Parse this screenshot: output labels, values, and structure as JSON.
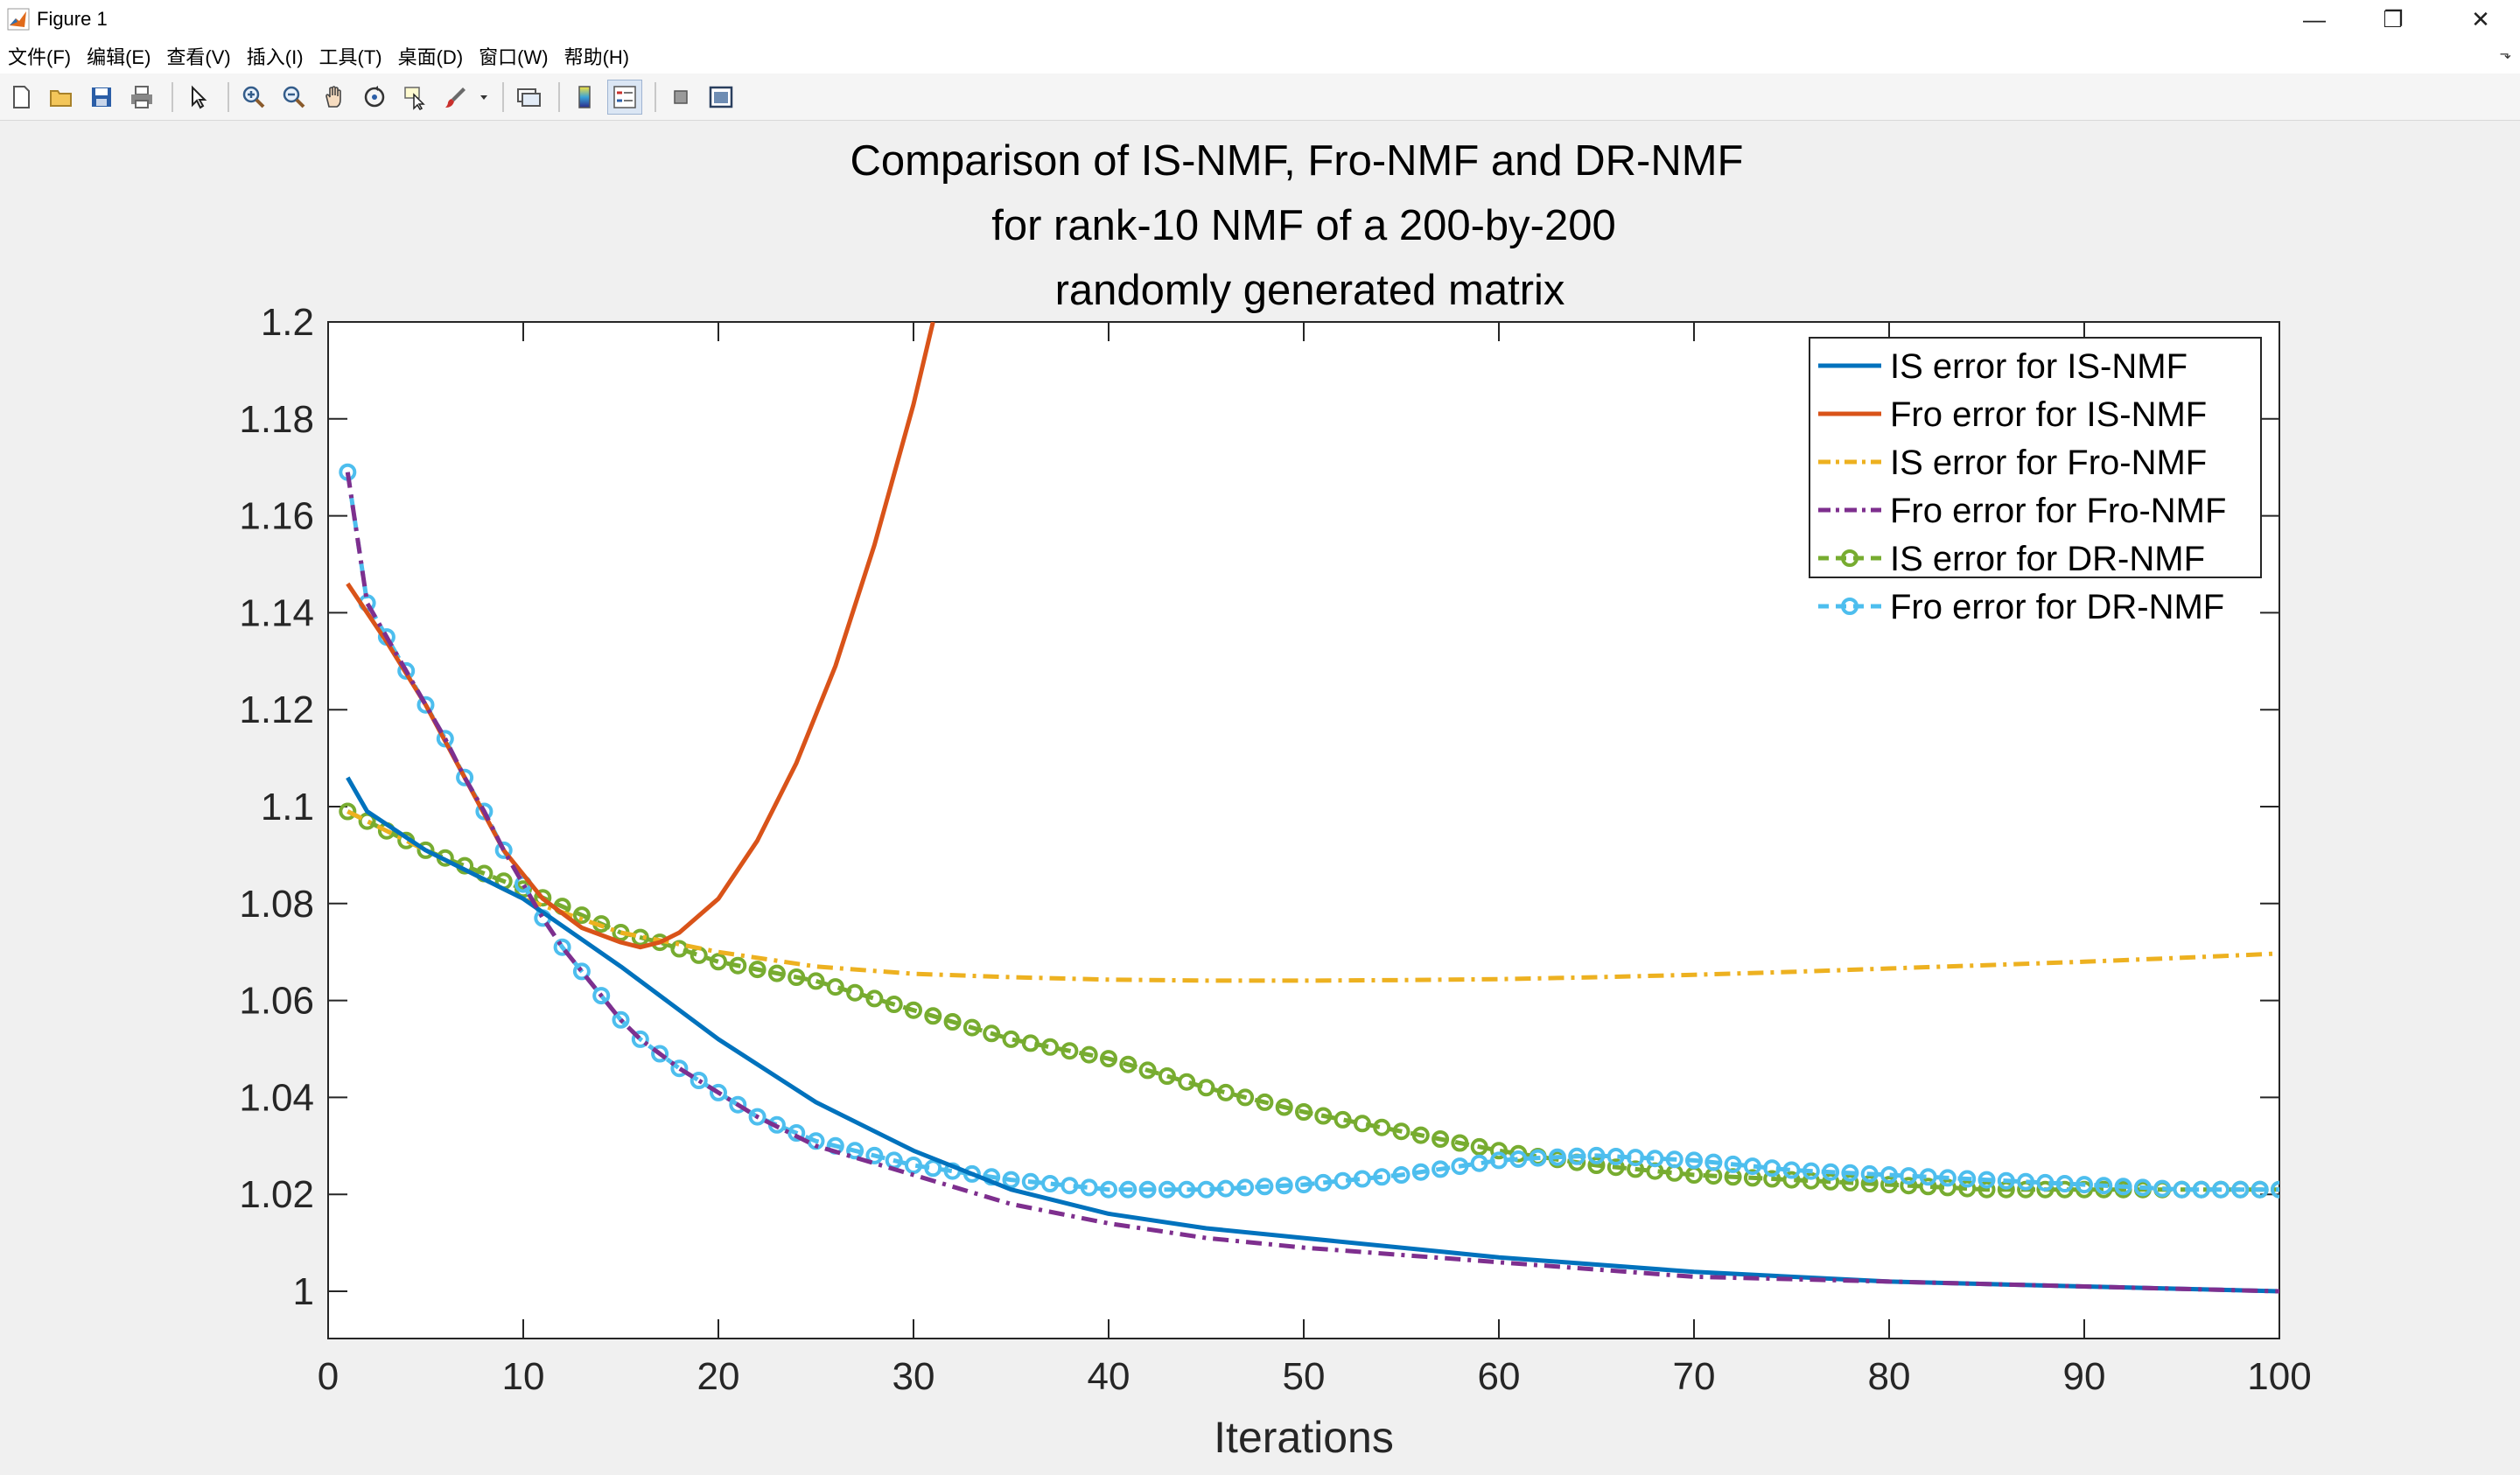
{
  "window": {
    "title": "Figure 1",
    "controls": [
      "—",
      "❐",
      "✕"
    ]
  },
  "menu": {
    "items": [
      "文件(F)",
      "编辑(E)",
      "查看(V)",
      "插入(I)",
      "工具(T)",
      "桌面(D)",
      "窗口(W)",
      "帮助(H)"
    ],
    "overflow": "⬎"
  },
  "toolbar": {
    "buttons": [
      "new-figure-icon",
      "open-file-icon",
      "save-icon",
      "print-icon",
      "pointer-icon",
      "zoom-in-icon",
      "zoom-out-icon",
      "pan-icon",
      "rotate-3d-icon",
      "data-cursor-icon",
      "brush-icon",
      "link-plot-icon",
      "colorbar-icon",
      "legend-icon",
      "hide-plot-tools-icon",
      "show-plot-tools-icon"
    ]
  },
  "colors": {
    "blue": "#0072BD",
    "orange": "#D95319",
    "yellow": "#EDB120",
    "purple": "#7E2F8E",
    "green": "#77AC30",
    "cyan": "#4DBEEE"
  },
  "chart_data": {
    "type": "line",
    "title": [
      "Comparison of IS-NMF, Fro-NMF and DR-NMF",
      "for rank-10 NMF of a 200-by-200",
      "randomly generated matrix"
    ],
    "xlabel": "Iterations",
    "ylabel": "",
    "xlim": [
      0,
      100
    ],
    "ylim": [
      0.99,
      1.2
    ],
    "xticks": [
      0,
      10,
      20,
      30,
      40,
      50,
      60,
      70,
      80,
      90,
      100
    ],
    "yticks": [
      1,
      1.02,
      1.04,
      1.06,
      1.08,
      1.1,
      1.12,
      1.14,
      1.16,
      1.18,
      1.2
    ],
    "ytick_labels": [
      "1",
      "1.02",
      "1.04",
      "1.06",
      "1.08",
      "1.1",
      "1.12",
      "1.14",
      "1.16",
      "1.18",
      "1.2"
    ],
    "legend_position": "top-right",
    "series": [
      {
        "name": "IS error for IS-NMF",
        "color": "#0072BD",
        "style": "solid",
        "marker": "none",
        "x": [
          1,
          2,
          5,
          10,
          15,
          20,
          25,
          30,
          35,
          40,
          45,
          50,
          60,
          70,
          80,
          90,
          100
        ],
        "y": [
          1.106,
          1.099,
          1.091,
          1.081,
          1.067,
          1.052,
          1.039,
          1.029,
          1.021,
          1.016,
          1.013,
          1.011,
          1.007,
          1.004,
          1.002,
          1.001,
          1.0
        ]
      },
      {
        "name": "Fro error for IS-NMF",
        "color": "#D95319",
        "style": "solid",
        "marker": "none",
        "x": [
          1,
          3,
          5,
          7,
          9,
          11,
          13,
          15,
          16,
          17,
          18,
          20,
          22,
          24,
          26,
          28,
          30,
          31
        ],
        "y": [
          1.146,
          1.134,
          1.121,
          1.106,
          1.091,
          1.081,
          1.075,
          1.072,
          1.071,
          1.072,
          1.074,
          1.081,
          1.093,
          1.109,
          1.129,
          1.154,
          1.183,
          1.2
        ]
      },
      {
        "name": "IS error for Fro-NMF",
        "color": "#EDB120",
        "style": "dashdot",
        "marker": "none",
        "x": [
          1,
          5,
          10,
          15,
          20,
          25,
          30,
          35,
          40,
          45,
          50,
          55,
          60,
          65,
          70,
          75,
          80,
          85,
          90,
          95,
          100
        ],
        "y": [
          1.099,
          1.091,
          1.081,
          1.074,
          1.07,
          1.067,
          1.0655,
          1.0648,
          1.0643,
          1.0641,
          1.0641,
          1.0642,
          1.0644,
          1.0648,
          1.0653,
          1.0659,
          1.0666,
          1.0673,
          1.068,
          1.0688,
          1.0697
        ]
      },
      {
        "name": "Fro error for Fro-NMF",
        "color": "#7E2F8E",
        "style": "dashdot",
        "marker": "none",
        "x": [
          1,
          2,
          3,
          4,
          5,
          6,
          7,
          8,
          9,
          10,
          11,
          12,
          13,
          14,
          15,
          16,
          17,
          18,
          20,
          22,
          25,
          30,
          35,
          40,
          45,
          50,
          60,
          70,
          80,
          90,
          100
        ],
        "y": [
          1.169,
          1.142,
          1.135,
          1.128,
          1.121,
          1.114,
          1.106,
          1.099,
          1.091,
          1.084,
          1.077,
          1.071,
          1.066,
          1.061,
          1.056,
          1.052,
          1.049,
          1.046,
          1.041,
          1.036,
          1.03,
          1.024,
          1.018,
          1.014,
          1.011,
          1.009,
          1.006,
          1.003,
          1.002,
          1.001,
          1.0
        ]
      },
      {
        "name": "IS error for DR-NMF",
        "color": "#77AC30",
        "style": "dashed",
        "marker": "circle",
        "x": [
          1,
          5,
          10,
          15,
          17,
          20,
          25,
          30,
          35,
          40,
          45,
          50,
          55,
          60,
          65,
          70,
          75,
          80,
          85,
          90,
          95,
          100
        ],
        "y": [
          1.099,
          1.091,
          1.083,
          1.074,
          1.072,
          1.068,
          1.064,
          1.058,
          1.052,
          1.048,
          1.042,
          1.037,
          1.033,
          1.029,
          1.026,
          1.024,
          1.023,
          1.022,
          1.021,
          1.021,
          1.021,
          1.021
        ]
      },
      {
        "name": "Fro error for DR-NMF",
        "color": "#4DBEEE",
        "style": "dashed",
        "marker": "circle",
        "x": [
          1,
          2,
          3,
          4,
          5,
          6,
          7,
          8,
          9,
          10,
          11,
          12,
          13,
          14,
          15,
          16,
          17,
          18,
          20,
          22,
          25,
          30,
          35,
          40,
          45,
          50,
          55,
          60,
          62,
          65,
          70,
          75,
          80,
          85,
          90,
          95,
          100
        ],
        "y": [
          1.169,
          1.142,
          1.135,
          1.128,
          1.121,
          1.114,
          1.106,
          1.099,
          1.091,
          1.084,
          1.077,
          1.071,
          1.066,
          1.061,
          1.056,
          1.052,
          1.049,
          1.046,
          1.041,
          1.036,
          1.031,
          1.026,
          1.023,
          1.021,
          1.021,
          1.022,
          1.024,
          1.027,
          1.0275,
          1.028,
          1.027,
          1.025,
          1.024,
          1.023,
          1.022,
          1.021,
          1.021
        ]
      }
    ]
  }
}
